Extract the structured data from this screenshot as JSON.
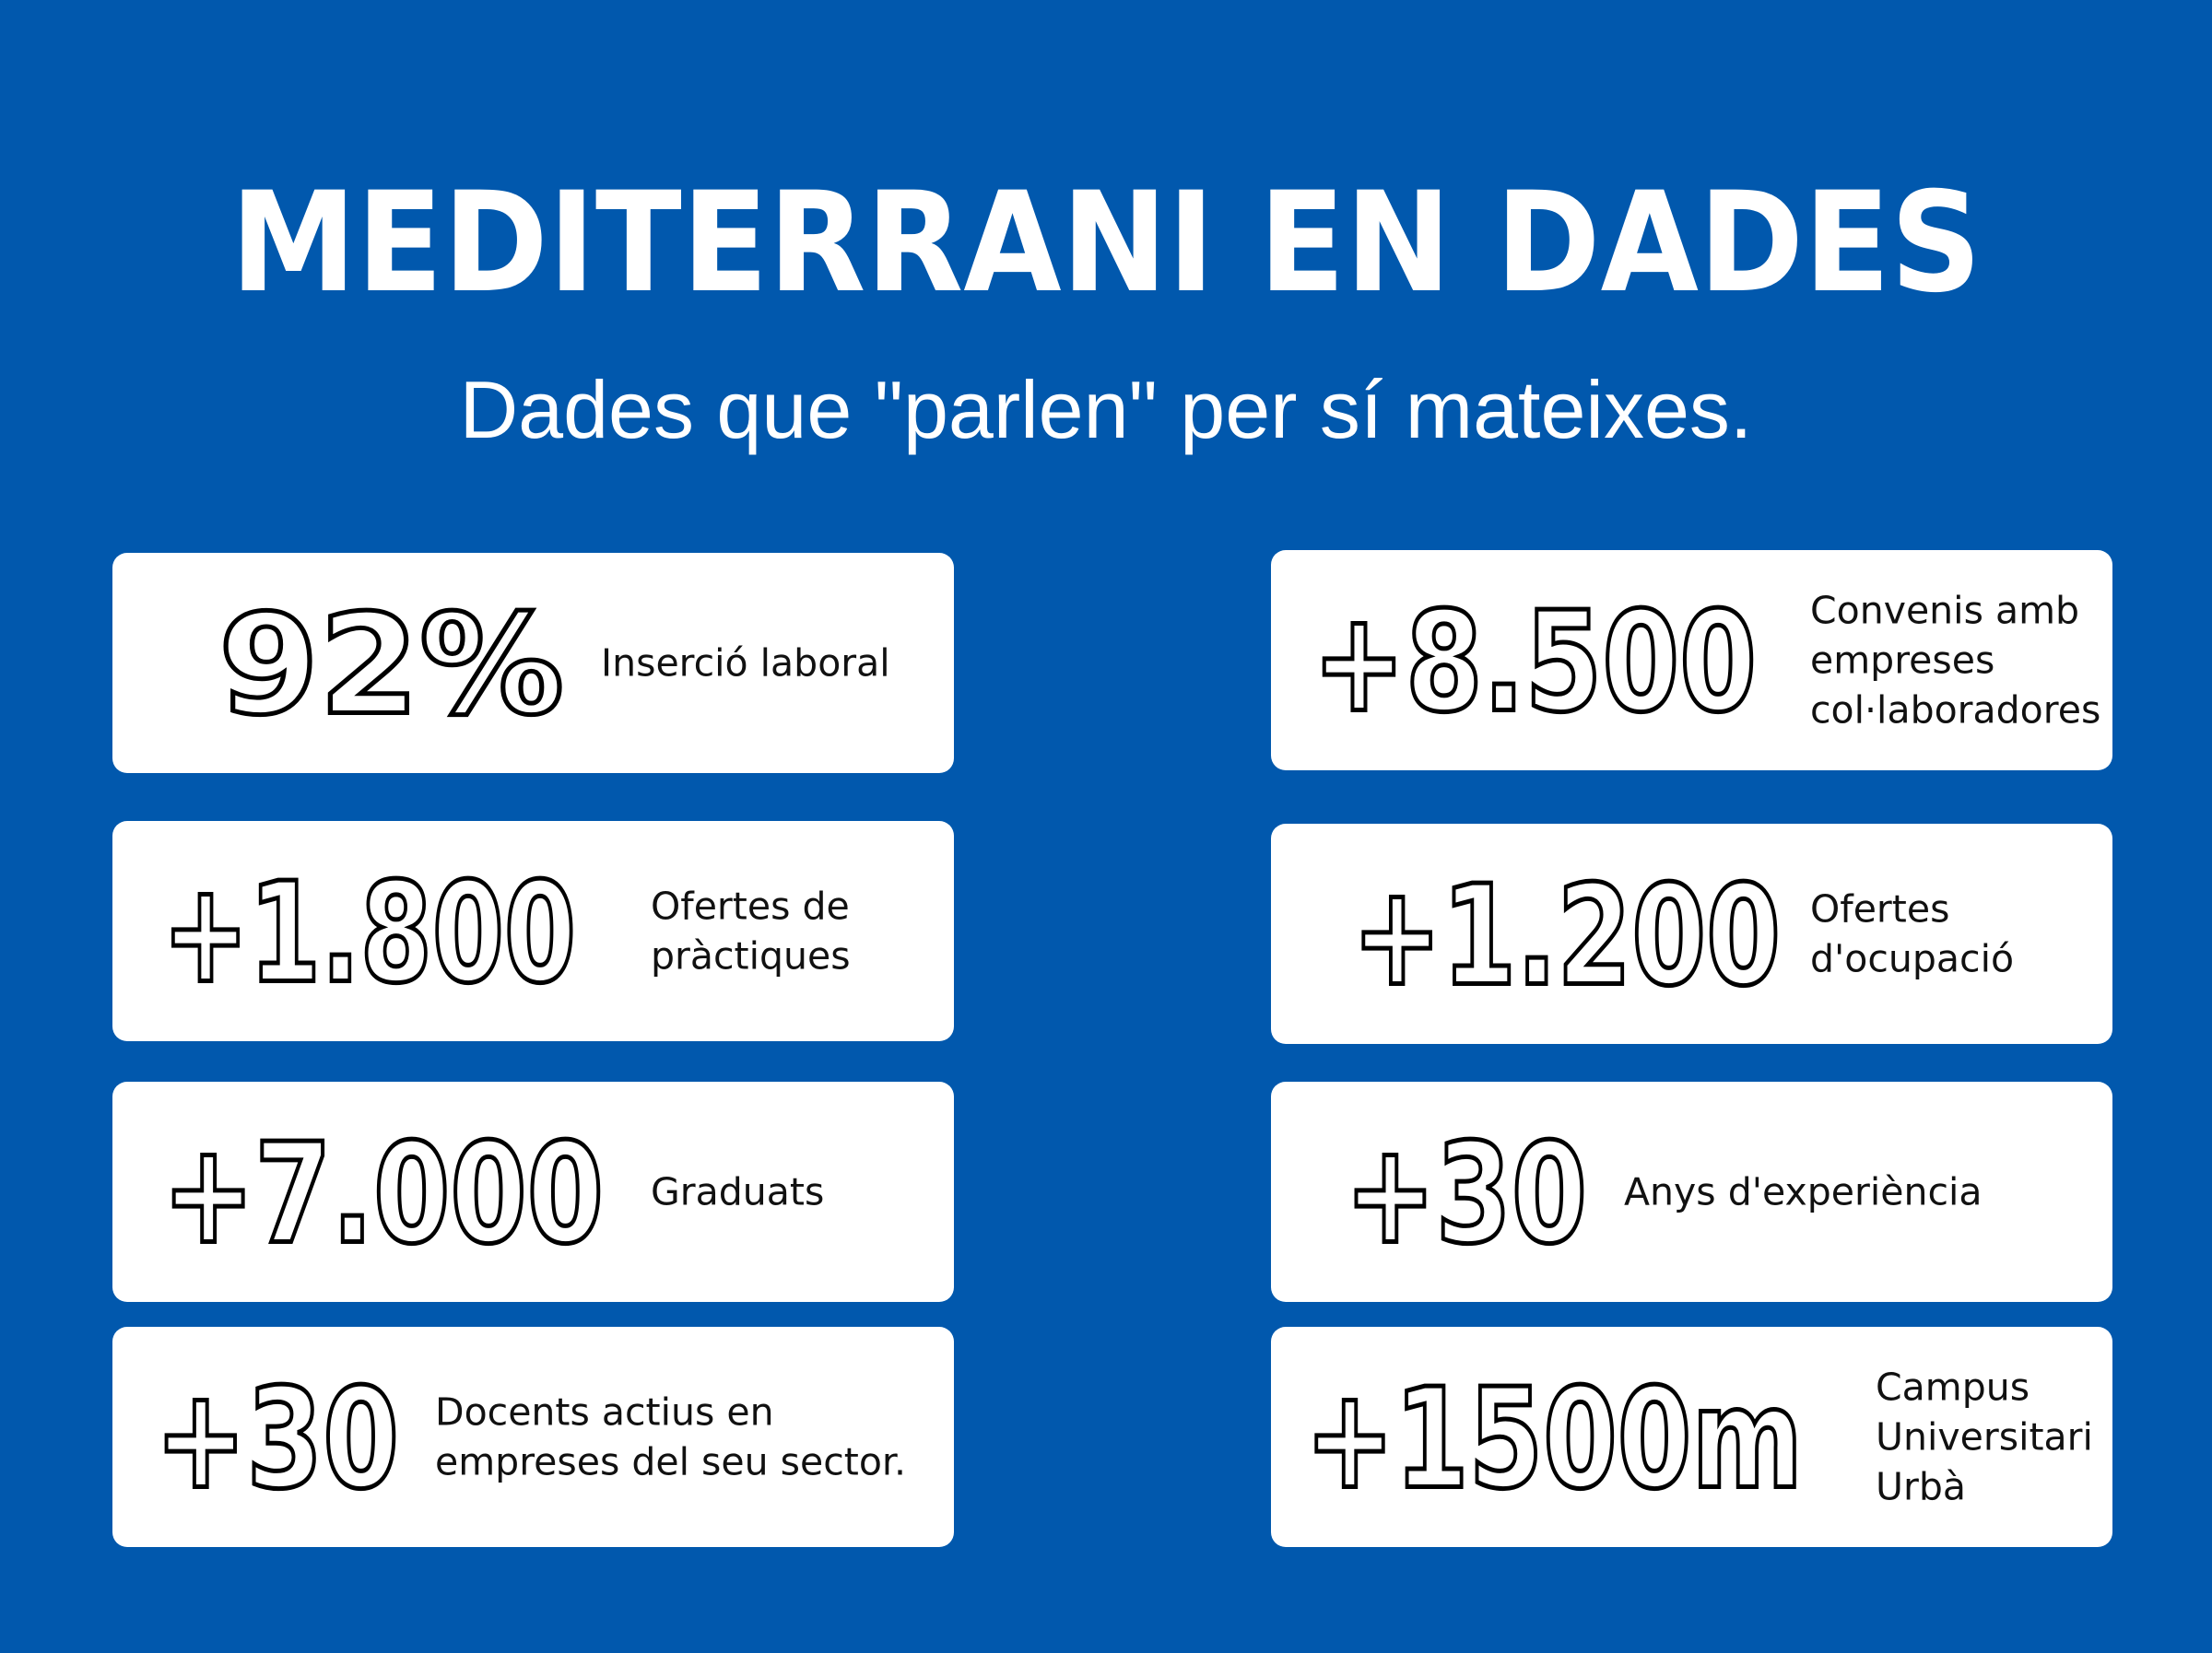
{
  "header": {
    "title": "MEDITERRANI EN DADES",
    "subtitle": "Dades que \"parlen\" per sí mateixes."
  },
  "stats": [
    {
      "value": "92%",
      "label_lines": [
        "Inserció laboral"
      ]
    },
    {
      "value": "+8.500",
      "label_lines": [
        "Convenis amb",
        "empreses",
        "col·laboradores"
      ]
    },
    {
      "value": "+1.800",
      "label_lines": [
        "Ofertes de",
        "pràctiques"
      ]
    },
    {
      "value": "+1.200",
      "label_lines": [
        "Ofertes",
        "d'ocupació"
      ]
    },
    {
      "value": "+7.000",
      "label_lines": [
        "Graduats"
      ]
    },
    {
      "value": "+30",
      "label_lines": [
        "Anys d'experiència"
      ]
    },
    {
      "value": "+30",
      "label_lines": [
        "Docents actius en",
        "empreses del seu sector."
      ]
    },
    {
      "value": "+1500m",
      "label_lines": [
        "Campus",
        "Universitari",
        "Urbà"
      ]
    }
  ]
}
